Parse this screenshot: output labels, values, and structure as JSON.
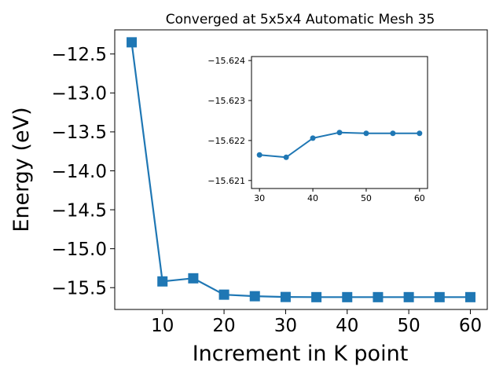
{
  "chart_data": [
    {
      "type": "line",
      "title": "Converged at 5x5x4 Automatic Mesh 35",
      "xlabel": "Increment in K point",
      "ylabel": "Energy (eV)",
      "x": [
        5,
        10,
        15,
        20,
        25,
        30,
        35,
        40,
        45,
        50,
        55,
        60
      ],
      "y": [
        -12.35,
        -15.42,
        -15.38,
        -15.59,
        -15.61,
        -15.62,
        -15.622,
        -15.622,
        -15.622,
        -15.622,
        -15.622,
        -15.622
      ],
      "xlim": [
        2.25,
        62.75
      ],
      "ylim": [
        -15.78,
        -12.19
      ],
      "xticks": [
        10,
        20,
        30,
        40,
        50,
        60
      ],
      "xtick_labels": [
        "10",
        "20",
        "30",
        "40",
        "50",
        "60"
      ],
      "yticks": [
        -15.5,
        -15.0,
        -14.5,
        -14.0,
        -13.5,
        -13.0,
        -12.5
      ],
      "ytick_labels": [
        "−15.5",
        "−15.0",
        "−14.5",
        "−14.0",
        "−13.5",
        "−13.0",
        "−12.5"
      ],
      "marker": "square",
      "color": "#1f77b4",
      "grid": false
    },
    {
      "type": "line",
      "title": "",
      "inverted_y": true,
      "x": [
        30,
        35,
        40,
        45,
        50,
        55,
        60
      ],
      "y": [
        -15.62164,
        -15.62158,
        -15.62206,
        -15.6222,
        -15.62218,
        -15.62218,
        -15.62218
      ],
      "xlim": [
        28.5,
        61.5
      ],
      "ylim": [
        -15.6208,
        -15.6241
      ],
      "xticks": [
        30,
        40,
        50,
        60
      ],
      "xtick_labels": [
        "30",
        "40",
        "50",
        "60"
      ],
      "yticks": [
        -15.621,
        -15.622,
        -15.623,
        -15.624
      ],
      "ytick_labels": [
        "−15.621",
        "−15.622",
        "−15.623",
        "−15.624"
      ],
      "marker": "circle",
      "color": "#1f77b4",
      "grid": false
    }
  ]
}
